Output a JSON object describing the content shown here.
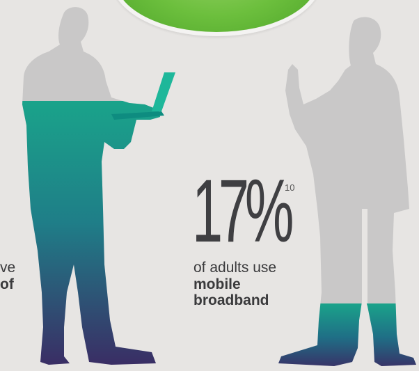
{
  "badge": {
    "color": "#6cbf3d"
  },
  "stat": {
    "number": "17%",
    "footnote": "10",
    "line1": "of adults use",
    "line2": "mobile",
    "line3": "broadband"
  },
  "left_text": {
    "line1": "ve",
    "line2": "of"
  },
  "colors": {
    "background": "#e7e5e3",
    "silhouette_grey": "#c9c8c8",
    "gradient_top": "#1aa38a",
    "gradient_bottom": "#3b2a63",
    "text": "#3a3a3c"
  },
  "fills": {
    "laptop_man_level": 0.73,
    "phone_man_level": 0.18
  }
}
